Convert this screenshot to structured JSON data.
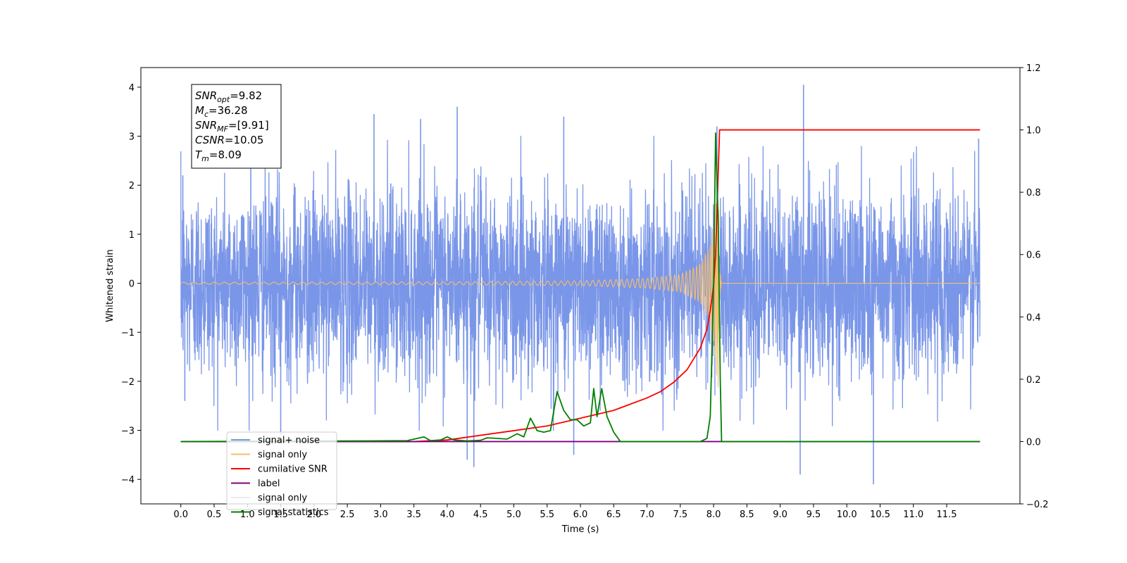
{
  "chart_data": {
    "type": "line",
    "title": "",
    "xlabel": "Time (s)",
    "ylabel": "Whitened strain",
    "y2label": "",
    "xlim": [
      -0.6,
      12.6
    ],
    "ylim": [
      -4.5,
      4.4
    ],
    "y2lim": [
      -0.2,
      1.2
    ],
    "x_ticks": [
      0.0,
      0.5,
      1.0,
      1.5,
      2.0,
      2.5,
      3.0,
      3.5,
      4.0,
      4.5,
      5.0,
      5.5,
      6.0,
      6.5,
      7.0,
      7.5,
      8.0,
      8.5,
      9.0,
      9.5,
      10.0,
      10.5,
      11.0,
      11.5
    ],
    "y_ticks": [
      -4,
      -3,
      -2,
      -1,
      0,
      1,
      2,
      3,
      4
    ],
    "y2_ticks": [
      -0.2,
      0.0,
      0.2,
      0.4,
      0.6,
      0.8,
      1.0,
      1.2
    ],
    "grid": false,
    "legend_placement": "lower-left",
    "annotation": {
      "lines": [
        {
          "base": "SNR",
          "sub": "opt",
          "value": "=9.82"
        },
        {
          "base": "M",
          "sub": "c",
          "value": "=36.28"
        },
        {
          "base": "SNR",
          "sub": "MF",
          "value": "=[9.91]"
        },
        {
          "base": "CSNR",
          "sub": "",
          "value": "=10.05"
        },
        {
          "base": "T",
          "sub": "m",
          "value": "=8.09"
        }
      ]
    },
    "series": [
      {
        "name": "signal+ noise",
        "color": "#7a96e8",
        "axis": "left",
        "style": "noise",
        "x_range": [
          0.0,
          12.0
        ],
        "typical_extent": [
          -2.2,
          2.5
        ],
        "spikes": [
          {
            "x": 0.03,
            "y": 2.2
          },
          {
            "x": 0.06,
            "y": -2.4
          },
          {
            "x": 1.05,
            "y": 3.0
          },
          {
            "x": 1.5,
            "y": -3.1
          },
          {
            "x": 2.9,
            "y": 3.45
          },
          {
            "x": 3.6,
            "y": 3.35
          },
          {
            "x": 4.15,
            "y": 3.6
          },
          {
            "x": 4.3,
            "y": -3.6
          },
          {
            "x": 4.4,
            "y": -3.75
          },
          {
            "x": 5.75,
            "y": 3.4
          },
          {
            "x": 5.9,
            "y": -3.5
          },
          {
            "x": 8.05,
            "y": 3.2
          },
          {
            "x": 9.35,
            "y": 4.05
          },
          {
            "x": 9.3,
            "y": -3.9
          },
          {
            "x": 10.4,
            "y": -4.1
          },
          {
            "x": 11.98,
            "y": 2.95
          }
        ]
      },
      {
        "name": "signal only",
        "color": "#f5be6e",
        "axis": "left",
        "style": "chirp",
        "x": [
          0.0,
          4.0,
          6.0,
          7.0,
          7.5,
          7.8,
          7.95,
          8.02,
          8.07,
          8.09,
          8.12,
          12.0
        ],
        "amplitude": [
          0.02,
          0.03,
          0.05,
          0.1,
          0.18,
          0.4,
          0.8,
          1.5,
          2.2,
          0.3,
          0.0,
          0.0
        ]
      },
      {
        "name": "cumilative SNR",
        "color": "#ff0000",
        "axis": "right",
        "x": [
          0.0,
          3.5,
          4.0,
          4.5,
          5.0,
          5.5,
          6.0,
          6.5,
          7.0,
          7.2,
          7.4,
          7.6,
          7.8,
          7.9,
          7.95,
          8.0,
          8.03,
          8.06,
          8.09,
          8.1,
          12.0
        ],
        "values": [
          0.0,
          0.0,
          0.005,
          0.02,
          0.035,
          0.05,
          0.075,
          0.1,
          0.14,
          0.16,
          0.19,
          0.23,
          0.3,
          0.36,
          0.42,
          0.5,
          0.6,
          0.8,
          1.0,
          1.0,
          1.0
        ]
      },
      {
        "name": "label",
        "color": "#800080",
        "axis": "right",
        "x": [
          0.0,
          7.99,
          7.99,
          8.0,
          8.0,
          8.1,
          8.1,
          12.0
        ],
        "values": [
          0.0,
          0.0,
          0.0,
          0.0,
          0.0,
          0.0,
          0.0,
          0.0
        ]
      },
      {
        "name": "signal only",
        "color": "#dddddd",
        "axis": "right",
        "hidden_marks": true,
        "x": [],
        "values": []
      },
      {
        "name": "signal statistics",
        "color": "#008000",
        "axis": "right",
        "x": [
          0.0,
          2.8,
          3.4,
          3.55,
          3.65,
          3.75,
          3.9,
          4.0,
          4.1,
          4.3,
          4.5,
          4.6,
          4.75,
          4.9,
          5.05,
          5.15,
          5.25,
          5.35,
          5.45,
          5.55,
          5.65,
          5.75,
          5.85,
          5.95,
          6.05,
          6.15,
          6.2,
          6.25,
          6.32,
          6.4,
          6.5,
          6.6,
          7.8,
          7.9,
          7.95,
          8.0,
          8.03,
          8.07,
          8.1,
          8.12,
          12.0
        ],
        "values": [
          0.0,
          0.002,
          0.003,
          0.01,
          0.015,
          0.003,
          0.005,
          0.015,
          0.005,
          0.002,
          0.004,
          0.012,
          0.01,
          0.008,
          0.025,
          0.015,
          0.075,
          0.035,
          0.03,
          0.035,
          0.16,
          0.1,
          0.07,
          0.07,
          0.05,
          0.06,
          0.17,
          0.08,
          0.17,
          0.08,
          0.03,
          0.0,
          0.0,
          0.01,
          0.08,
          0.5,
          0.99,
          0.7,
          0.2,
          0.0,
          0.0
        ]
      }
    ]
  }
}
